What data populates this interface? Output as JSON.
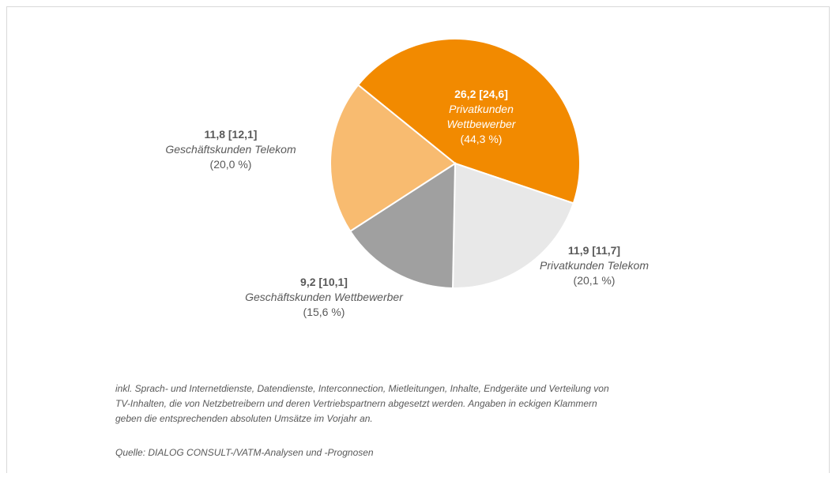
{
  "chart_data": {
    "type": "pie",
    "categories": [
      "Privatkunden Wettbewerber",
      "Privatkunden Telekom",
      "Geschäftskunden Wettbewerber",
      "Geschäftskunden Telekom"
    ],
    "values": [
      26.2,
      11.9,
      9.2,
      11.8
    ],
    "value_labels": [
      "26,2 [24,6]",
      "11,9 [11,7]",
      "9,2 [10,1]",
      "11,8 [12,1]"
    ],
    "percent_labels": [
      "(44,3 %)",
      "(20,1 %)",
      "(15,6 %)",
      "(20,0 %)"
    ],
    "colors": [
      "#f28a00",
      "#e8e8e8",
      "#a0a0a0",
      "#f8bb70"
    ],
    "footnote": [
      "inkl. Sprach- und Internetdienste, Datendienste, Interconnection, Mietleitungen, Inhalte, Endgeräte und Verteilung von",
      "TV-Inhalten, die von Netzbetreibern und deren Vertriebspartnern abgesetzt werden. Angaben in eckigen Klammern",
      "geben die entsprechenden absoluten Umsätze im Vorjahr an."
    ],
    "source": "Quelle: DIALOG CONSULT-/VATM-Analysen und -Prognosen"
  }
}
